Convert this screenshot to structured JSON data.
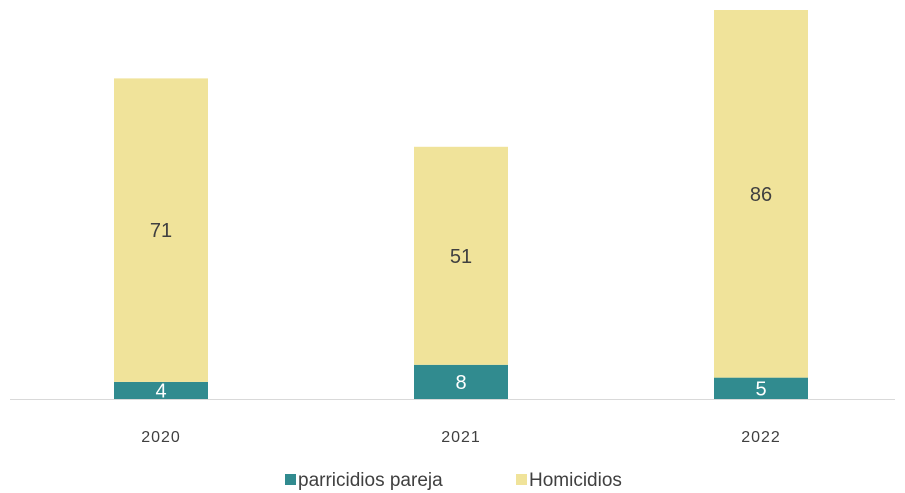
{
  "chart_data": {
    "type": "bar",
    "stacked": true,
    "categories": [
      "2020",
      "2021",
      "2022"
    ],
    "series": [
      {
        "name": "parricidios pareja",
        "values": [
          4,
          8,
          5
        ],
        "color": "#318b8f",
        "label_color": "#ffffff"
      },
      {
        "name": "Homicidios",
        "values": [
          71,
          51,
          86
        ],
        "color": "#f0e39a",
        "label_color": "#404040"
      }
    ],
    "ylim": [
      0,
      91
    ],
    "grid": false,
    "legend_position": "bottom",
    "axis_color": "#d9d9d9"
  }
}
